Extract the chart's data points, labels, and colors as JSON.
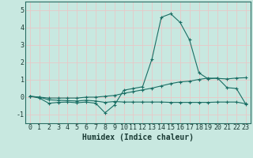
{
  "x": [
    0,
    1,
    2,
    3,
    4,
    5,
    6,
    7,
    8,
    9,
    10,
    11,
    12,
    13,
    14,
    15,
    16,
    17,
    18,
    19,
    20,
    21,
    22,
    23
  ],
  "line1": [
    0.05,
    -0.05,
    -0.35,
    -0.3,
    -0.28,
    -0.32,
    -0.28,
    -0.35,
    -0.9,
    -0.45,
    0.4,
    0.5,
    0.6,
    2.2,
    4.6,
    4.8,
    4.3,
    3.3,
    1.4,
    1.05,
    1.1,
    0.55,
    0.5,
    -0.4
  ],
  "line2": [
    0.05,
    0.0,
    -0.05,
    -0.05,
    -0.05,
    -0.05,
    0.0,
    0.0,
    0.05,
    0.1,
    0.22,
    0.32,
    0.42,
    0.52,
    0.65,
    0.78,
    0.88,
    0.92,
    1.02,
    1.1,
    1.08,
    1.05,
    1.1,
    1.12
  ],
  "line3": [
    0.05,
    0.0,
    -0.15,
    -0.18,
    -0.2,
    -0.22,
    -0.18,
    -0.22,
    -0.3,
    -0.25,
    -0.28,
    -0.28,
    -0.28,
    -0.28,
    -0.28,
    -0.3,
    -0.3,
    -0.3,
    -0.3,
    -0.3,
    -0.28,
    -0.28,
    -0.28,
    -0.38
  ],
  "bg_color": "#c8e8e0",
  "grid_color": "#e8c8c8",
  "line_color": "#1a6e64",
  "xlabel": "Humidex (Indice chaleur)",
  "xlabel_fontsize": 7,
  "tick_fontsize": 6,
  "ylim": [
    -1.5,
    5.5
  ],
  "xlim": [
    -0.5,
    23.5
  ]
}
